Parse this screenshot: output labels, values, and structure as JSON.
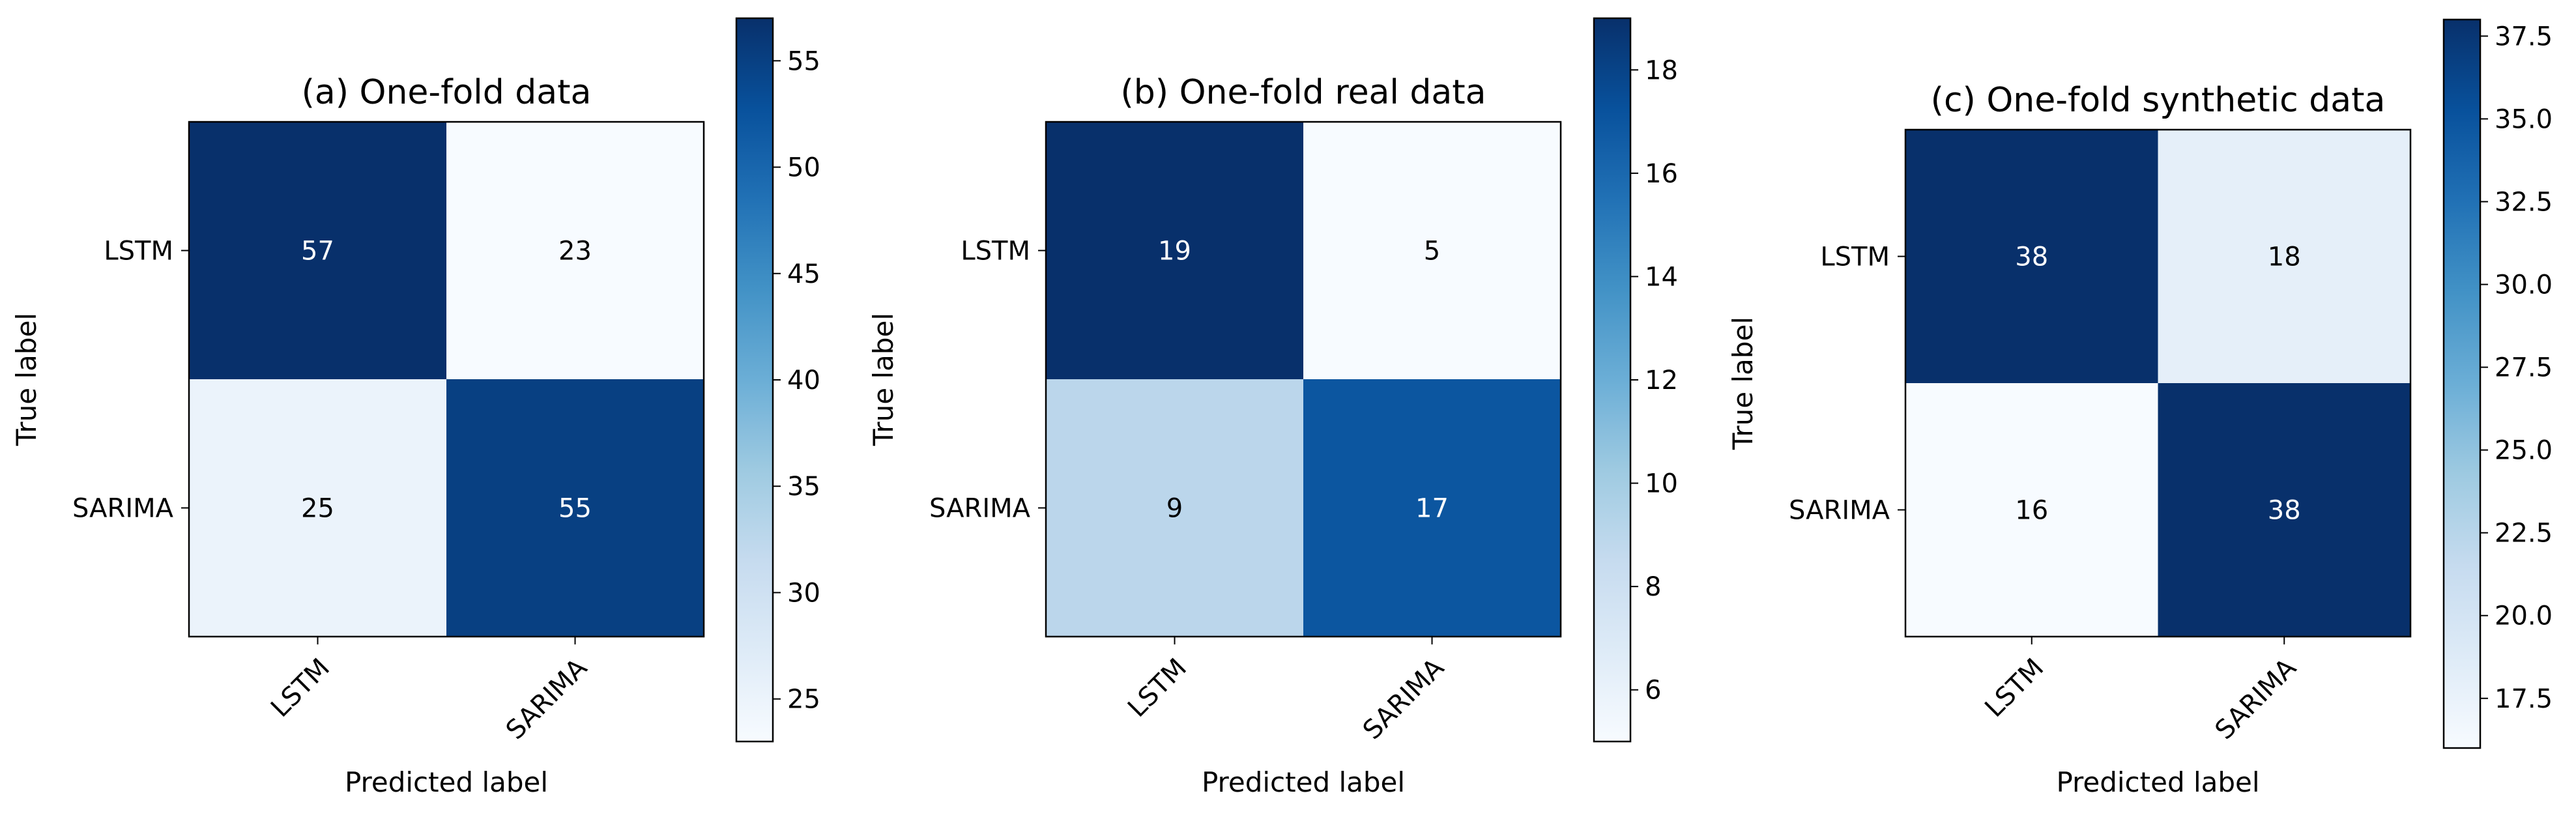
{
  "chart_data": [
    {
      "type": "heatmap",
      "title": "(a) One-fold data",
      "xlabel": "Predicted label",
      "ylabel": "True label",
      "x_categories": [
        "LSTM",
        "SARIMA"
      ],
      "y_categories": [
        "LSTM",
        "SARIMA"
      ],
      "values": [
        [
          57,
          23
        ],
        [
          25,
          55
        ]
      ],
      "cell_labels": [
        [
          "57",
          "23"
        ],
        [
          "25",
          "55"
        ]
      ],
      "colormap": "Blues",
      "colorbar": {
        "range": [
          23,
          57
        ],
        "ticks": [
          25,
          30,
          35,
          40,
          45,
          50,
          55
        ],
        "tick_labels": [
          "25",
          "30",
          "35",
          "40",
          "45",
          "50",
          "55"
        ]
      }
    },
    {
      "type": "heatmap",
      "title": "(b) One-fold real data",
      "xlabel": "Predicted label",
      "ylabel": "True label",
      "x_categories": [
        "LSTM",
        "SARIMA"
      ],
      "y_categories": [
        "LSTM",
        "SARIMA"
      ],
      "values": [
        [
          19,
          5
        ],
        [
          9,
          17
        ]
      ],
      "cell_labels": [
        [
          "19",
          "5"
        ],
        [
          "9",
          "17"
        ]
      ],
      "colormap": "Blues",
      "colorbar": {
        "range": [
          5,
          19
        ],
        "ticks": [
          6,
          8,
          10,
          12,
          14,
          16,
          18
        ],
        "tick_labels": [
          "6",
          "8",
          "10",
          "12",
          "14",
          "16",
          "18"
        ]
      }
    },
    {
      "type": "heatmap",
      "title": "(c) One-fold synthetic data",
      "xlabel": "Predicted label",
      "ylabel": "True label",
      "x_categories": [
        "LSTM",
        "SARIMA"
      ],
      "y_categories": [
        "LSTM",
        "SARIMA"
      ],
      "values": [
        [
          38,
          18
        ],
        [
          16,
          38
        ]
      ],
      "cell_labels": [
        [
          "38",
          "18"
        ],
        [
          "16",
          "38"
        ]
      ],
      "colormap": "Blues",
      "colorbar": {
        "range": [
          16,
          38
        ],
        "ticks": [
          17.5,
          20.0,
          22.5,
          25.0,
          27.5,
          30.0,
          32.5,
          35.0,
          37.5
        ],
        "tick_labels": [
          "17.5",
          "20.0",
          "22.5",
          "25.0",
          "27.5",
          "30.0",
          "32.5",
          "35.0",
          "37.5"
        ]
      }
    }
  ]
}
